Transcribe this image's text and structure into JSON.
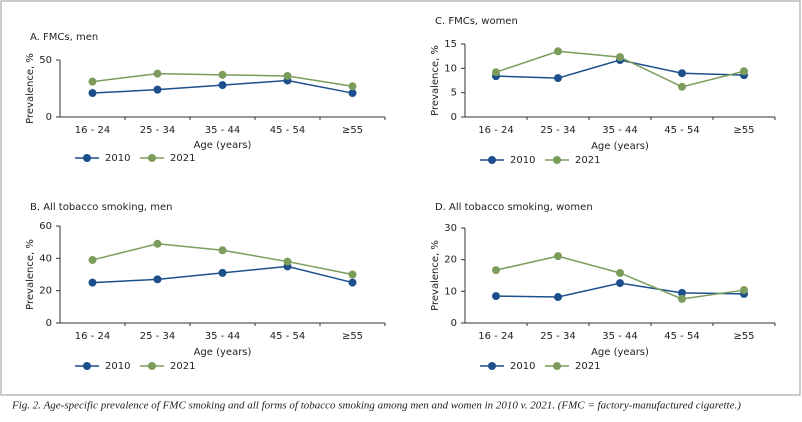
{
  "chart_data": [
    {
      "type": "line",
      "title": "A. FMCs, men",
      "xlabel": "Age (years)",
      "ylabel": "Prevalence, %",
      "categories": [
        "16 - 24",
        "25 - 34",
        "35 - 44",
        "45 - 54",
        "≥55"
      ],
      "series": [
        {
          "name": "2010",
          "color": "#1c4f8c",
          "values": [
            21,
            24,
            28,
            32,
            21
          ]
        },
        {
          "name": "2021",
          "color": "#7c9c5c",
          "values": [
            31,
            38,
            37,
            36,
            27
          ]
        }
      ],
      "ylim": [
        0,
        50
      ],
      "yticks": [
        0,
        50
      ]
    },
    {
      "type": "line",
      "title": "B. All tobacco smoking, men",
      "xlabel": "Age (years)",
      "ylabel": "Prevalence, %",
      "categories": [
        "16 - 24",
        "25 - 34",
        "35 - 44",
        "45 - 54",
        "≥55"
      ],
      "series": [
        {
          "name": "2010",
          "color": "#1c4f8c",
          "values": [
            25,
            27,
            31,
            35,
            25
          ]
        },
        {
          "name": "2021",
          "color": "#7c9c5c",
          "values": [
            39,
            49,
            45,
            38,
            30
          ]
        }
      ],
      "ylim": [
        0,
        60
      ],
      "yticks": [
        0,
        20,
        40,
        60
      ]
    },
    {
      "type": "line",
      "title": "C. FMCs, women",
      "xlabel": "Age (years)",
      "ylabel": "Prevalence, %",
      "categories": [
        "16 - 24",
        "25 - 34",
        "35 - 44",
        "45 - 54",
        "≥55"
      ],
      "series": [
        {
          "name": "2010",
          "color": "#1c4f8c",
          "values": [
            8.4,
            8.0,
            11.7,
            9.0,
            8.6
          ]
        },
        {
          "name": "2021",
          "color": "#7c9c5c",
          "values": [
            9.2,
            13.5,
            12.3,
            6.2,
            9.4
          ]
        }
      ],
      "ylim": [
        0,
        15
      ],
      "yticks": [
        0,
        5,
        10,
        15
      ]
    },
    {
      "type": "line",
      "title": "D. All tobacco smoking, women",
      "xlabel": "Age (years)",
      "ylabel": "Prevalence, %",
      "categories": [
        "16 - 24",
        "25 - 34",
        "35 - 44",
        "45 - 54",
        "≥55"
      ],
      "series": [
        {
          "name": "2010",
          "color": "#1c4f8c",
          "values": [
            8.5,
            8.2,
            12.6,
            9.5,
            9.2
          ]
        },
        {
          "name": "2021",
          "color": "#7c9c5c",
          "values": [
            16.7,
            21.1,
            15.8,
            7.6,
            10.4
          ]
        }
      ],
      "ylim": [
        0,
        30
      ],
      "yticks": [
        0,
        10,
        20,
        30
      ]
    }
  ],
  "caption": "Fig. 2. Age-specific prevalence of FMC smoking and all forms of tobacco smoking among men and women in 2010 v. 2021. (FMC = factory-manufactured cigarette.)"
}
